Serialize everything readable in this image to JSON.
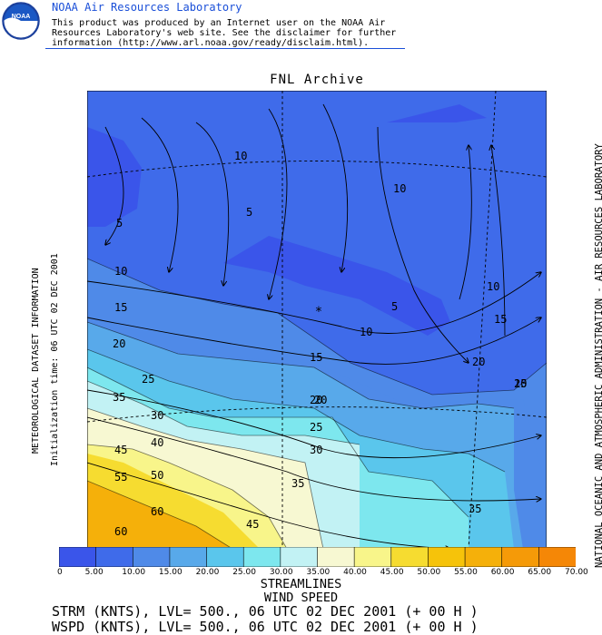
{
  "header": {
    "org_name": "NOAA Air Resources Laboratory",
    "disclaimer_lines": [
      "This product was produced by an Internet user on the NOAA Air",
      "Resources Laboratory's web site.  See the disclaimer for further",
      "information (http://www.arl.noaa.gov/ready/disclaim.html)."
    ],
    "logo_text": "NOAA"
  },
  "map": {
    "title": "FNL Archive",
    "contour_labels": [
      "5",
      "5",
      "5",
      "10",
      "10",
      "10",
      "10",
      "10",
      "15",
      "15",
      "15",
      "15",
      "20",
      "20",
      "20",
      "20",
      "20",
      "25",
      "25",
      "30",
      "30",
      "35",
      "35",
      "35",
      "40",
      "45",
      "45",
      "50",
      "55",
      "60",
      "60"
    ],
    "marker": "*"
  },
  "side_text": {
    "left_title": "METEOROLOGICAL DATASET INFORMATION",
    "left_init": "Initialization time: 06 UTC 02 DEC 2001",
    "right_credit": "NATIONAL OCEANIC AND ATMOSPHERIC ADMINISTRATION - AIR RESOURCES LABORATORY"
  },
  "colorbar": {
    "ticks": [
      "0",
      "5.00",
      "10.00",
      "15.00",
      "20.00",
      "25.00",
      "30.00",
      "35.00",
      "40.00",
      "45.00",
      "50.00",
      "55.00",
      "60.00",
      "65.00",
      "70.00"
    ],
    "colors": [
      "#3a55ea",
      "#3f6bea",
      "#4f8ae8",
      "#58a9ea",
      "#5ac6ec",
      "#7de7ee",
      "#c2f2f4",
      "#f7f8d2",
      "#f8f58a",
      "#f6dc30",
      "#f6c30a",
      "#f5b00a",
      "#f59a08",
      "#f58706"
    ]
  },
  "footer": {
    "streamlines_title": "STREAMLINES",
    "windspeed_title": "WIND SPEED",
    "line1": "STRM (KNTS),  LVL= 500., 06 UTC 02 DEC 2001 (+ 00 H )",
    "line2": "WSPD (KNTS),  LVL= 500., 06 UTC 02 DEC 2001 (+ 00 H )"
  }
}
